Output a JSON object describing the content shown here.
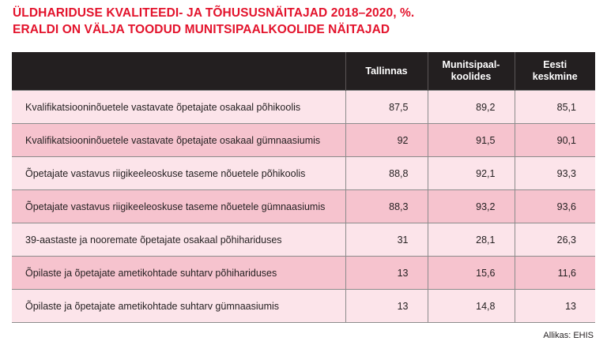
{
  "chart_data": {
    "type": "table",
    "title_lines": [
      "ÜLDHARIDUSE KVALITEEDI- JA TÕHUSUSNÄITAJAD 2018–2020, %.",
      "ERALDI ON VÄLJA TOODUD MUNITSIPAALKOOLIDE NÄITAJAD"
    ],
    "columns": [
      "",
      "Tallinnas",
      "Munitsipaal-\nkoolides",
      "Eesti\nkeskmine"
    ],
    "rows": [
      {
        "label": "Kvalifikatsiooninõuetele vastavate õpetajate osakaal põhikoolis",
        "values": [
          "87,5",
          "89,2",
          "85,1"
        ]
      },
      {
        "label": "Kvalifikatsiooninõuetele vastavate õpetajate osakaal gümnaasiumis",
        "values": [
          "92",
          "91,5",
          "90,1"
        ]
      },
      {
        "label": "Õpetajate vastavus riigikeeleoskuse taseme nõuetele põhikoolis",
        "values": [
          "88,8",
          "92,1",
          "93,3"
        ]
      },
      {
        "label": "Õpetajate vastavus riigikeeleoskuse taseme nõuetele gümnaasiumis",
        "values": [
          "88,3",
          "93,2",
          "93,6"
        ]
      },
      {
        "label": "39-aastaste ja nooremate õpetajate osakaal põhihariduses",
        "values": [
          "31",
          "28,1",
          "26,3"
        ]
      },
      {
        "label": "Õpilaste ja õpetajate ametikohtade suhtarv põhihariduses",
        "values": [
          "13",
          "15,6",
          "11,6"
        ]
      },
      {
        "label": "Õpilaste ja õpetajate ametikohtade suhtarv gümnaasiumis",
        "values": [
          "13",
          "14,8",
          "13"
        ]
      }
    ],
    "source": "Allikas: EHIS"
  },
  "colors": {
    "title": "#e3132c",
    "header_bg": "#231f20",
    "row_light": "#fce4ea",
    "row_dark": "#f6c3ce"
  }
}
